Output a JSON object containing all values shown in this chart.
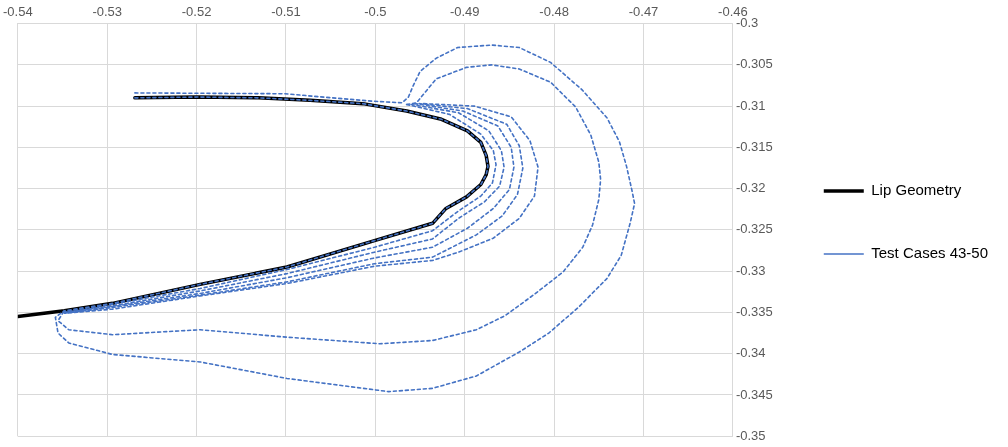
{
  "chart_data": {
    "type": "line",
    "xlim": [
      -0.54,
      -0.46
    ],
    "ylim": [
      -0.35,
      -0.3
    ],
    "xticks": [
      -0.54,
      -0.53,
      -0.52,
      -0.51,
      -0.5,
      -0.49,
      -0.48,
      -0.47,
      -0.46
    ],
    "yticks": [
      -0.35,
      -0.345,
      -0.34,
      -0.335,
      -0.33,
      -0.325,
      -0.32,
      -0.315,
      -0.31,
      -0.305,
      -0.3
    ],
    "grid": true,
    "legend": "right",
    "marker": "none",
    "series": [
      {
        "name": "Lip Geometry",
        "color": "#000000",
        "line_style": "solid",
        "x": [
          -0.5269,
          -0.5199,
          -0.5131,
          -0.5073,
          -0.5014,
          -0.4965,
          -0.4926,
          -0.4897,
          -0.4882,
          -0.4876,
          -0.4874,
          -0.4876,
          -0.4882,
          -0.4898,
          -0.4921,
          -0.4936,
          -0.5001,
          -0.5099,
          -0.5196,
          -0.5294,
          -0.5348,
          -0.54
        ],
        "values": [
          -0.309,
          -0.3089,
          -0.309,
          -0.3093,
          -0.3097,
          -0.3106,
          -0.3116,
          -0.313,
          -0.3144,
          -0.316,
          -0.3173,
          -0.3183,
          -0.3195,
          -0.321,
          -0.3224,
          -0.3242,
          -0.3263,
          -0.3295,
          -0.3316,
          -0.3339,
          -0.3348,
          -0.3355
        ]
      },
      {
        "name": "Test Cases 43-50",
        "color": "#4472c4",
        "line_style": "dashed",
        "x": [
          -0.5269,
          -0.5102,
          -0.5004,
          -0.497,
          -0.4963,
          -0.4958,
          -0.495,
          -0.4932,
          -0.4908,
          -0.487,
          -0.4839,
          -0.4804,
          -0.4769,
          -0.4741,
          -0.4727,
          -0.4719,
          -0.4713,
          -0.471,
          -0.4715,
          -0.4725,
          -0.4741,
          -0.4773,
          -0.4806,
          -0.4839,
          -0.4887,
          -0.4936,
          -0.4985,
          -0.5099,
          -0.5196,
          -0.5294,
          -0.5343,
          -0.5355,
          -0.5358,
          -0.5348
        ],
        "values": [
          -0.3084,
          -0.3085,
          -0.3094,
          -0.3096,
          -0.3089,
          -0.3076,
          -0.3058,
          -0.3042,
          -0.3029,
          -0.3026,
          -0.3029,
          -0.3047,
          -0.308,
          -0.3114,
          -0.3143,
          -0.3173,
          -0.3202,
          -0.3218,
          -0.3242,
          -0.3281,
          -0.3309,
          -0.3344,
          -0.3375,
          -0.3398,
          -0.3427,
          -0.3442,
          -0.3446,
          -0.343,
          -0.341,
          -0.3401,
          -0.3387,
          -0.3375,
          -0.3356,
          -0.3348
        ]
      },
      {
        "color": "#4472c4",
        "line_style": "dashed",
        "x": [
          -0.5269,
          -0.5199,
          -0.5131,
          -0.5073,
          -0.5014,
          -0.4965,
          -0.4926,
          -0.4897,
          -0.4882,
          -0.4876,
          -0.4874,
          -0.4876,
          -0.4882,
          -0.4898,
          -0.4921,
          -0.4936,
          -0.5001,
          -0.5099,
          -0.5196,
          -0.5294,
          -0.5348
        ],
        "values": [
          -0.309,
          -0.3089,
          -0.309,
          -0.3093,
          -0.3097,
          -0.3106,
          -0.3116,
          -0.313,
          -0.3144,
          -0.316,
          -0.3173,
          -0.3183,
          -0.3195,
          -0.321,
          -0.3224,
          -0.3242,
          -0.3263,
          -0.3295,
          -0.3316,
          -0.3339,
          -0.3348
        ]
      },
      {
        "color": "#4472c4",
        "line_style": "dashed",
        "x": [
          -0.4965,
          -0.4917,
          -0.4882,
          -0.4868,
          -0.4865,
          -0.4869,
          -0.4882,
          -0.4907,
          -0.4936,
          -0.5001,
          -0.5099,
          -0.5196,
          -0.5294,
          -0.5348
        ],
        "values": [
          -0.3098,
          -0.311,
          -0.3134,
          -0.3154,
          -0.3171,
          -0.3193,
          -0.3209,
          -0.3227,
          -0.3251,
          -0.3271,
          -0.3298,
          -0.3321,
          -0.334,
          -0.3349
        ]
      },
      {
        "color": "#4472c4",
        "line_style": "dashed",
        "x": [
          -0.496,
          -0.4907,
          -0.4873,
          -0.4859,
          -0.4856,
          -0.4861,
          -0.4878,
          -0.4907,
          -0.4936,
          -0.5001,
          -0.5099,
          -0.5196,
          -0.5294,
          -0.5348
        ],
        "values": [
          -0.3098,
          -0.3108,
          -0.313,
          -0.3154,
          -0.3174,
          -0.3197,
          -0.3216,
          -0.3236,
          -0.3261,
          -0.3277,
          -0.3303,
          -0.3324,
          -0.3342,
          -0.335
        ]
      },
      {
        "color": "#4472c4",
        "line_style": "dashed",
        "x": [
          -0.4956,
          -0.4902,
          -0.4863,
          -0.4848,
          -0.4845,
          -0.485,
          -0.4868,
          -0.4897,
          -0.4936,
          -0.5001,
          -0.5099,
          -0.5196,
          -0.5294,
          -0.5348
        ],
        "values": [
          -0.3097,
          -0.3106,
          -0.3124,
          -0.315,
          -0.3174,
          -0.3201,
          -0.3224,
          -0.3248,
          -0.3271,
          -0.3284,
          -0.3308,
          -0.3327,
          -0.3343,
          -0.335
        ]
      },
      {
        "color": "#4472c4",
        "line_style": "dashed",
        "x": [
          -0.4951,
          -0.4897,
          -0.4853,
          -0.4839,
          -0.4835,
          -0.4841,
          -0.4858,
          -0.4887,
          -0.4936,
          -0.5001,
          -0.5099,
          -0.5196,
          -0.5294,
          -0.5348
        ],
        "values": [
          -0.3097,
          -0.3103,
          -0.3122,
          -0.3148,
          -0.3175,
          -0.3207,
          -0.3233,
          -0.3256,
          -0.3283,
          -0.3291,
          -0.3313,
          -0.3329,
          -0.3344,
          -0.3351
        ]
      },
      {
        "color": "#4472c4",
        "line_style": "dashed",
        "x": [
          -0.4946,
          -0.4889,
          -0.4848,
          -0.4827,
          -0.4818,
          -0.4822,
          -0.4839,
          -0.4868,
          -0.4907,
          -0.4936,
          -0.5001,
          -0.5099,
          -0.5196,
          -0.5294,
          -0.5348
        ],
        "values": [
          -0.3097,
          -0.31,
          -0.3113,
          -0.3142,
          -0.3174,
          -0.3209,
          -0.3236,
          -0.326,
          -0.3277,
          -0.3287,
          -0.3294,
          -0.3315,
          -0.333,
          -0.3346,
          -0.3351
        ]
      },
      {
        "color": "#4472c4",
        "line_style": "dashed",
        "x": [
          -0.4965,
          -0.4954,
          -0.4932,
          -0.4898,
          -0.487,
          -0.4839,
          -0.4804,
          -0.4776,
          -0.4759,
          -0.475,
          -0.4748,
          -0.475,
          -0.4757,
          -0.4768,
          -0.479,
          -0.4822,
          -0.4855,
          -0.4887,
          -0.4936,
          -0.4995,
          -0.5099,
          -0.5196,
          -0.5294,
          -0.5343,
          -0.5355,
          -0.5348
        ],
        "values": [
          -0.3098,
          -0.3096,
          -0.3067,
          -0.3053,
          -0.305,
          -0.3055,
          -0.3071,
          -0.3101,
          -0.3135,
          -0.3168,
          -0.3189,
          -0.3213,
          -0.3244,
          -0.3271,
          -0.3301,
          -0.3328,
          -0.3354,
          -0.3371,
          -0.3384,
          -0.3388,
          -0.338,
          -0.3371,
          -0.3377,
          -0.3371,
          -0.336,
          -0.3348
        ]
      }
    ]
  }
}
